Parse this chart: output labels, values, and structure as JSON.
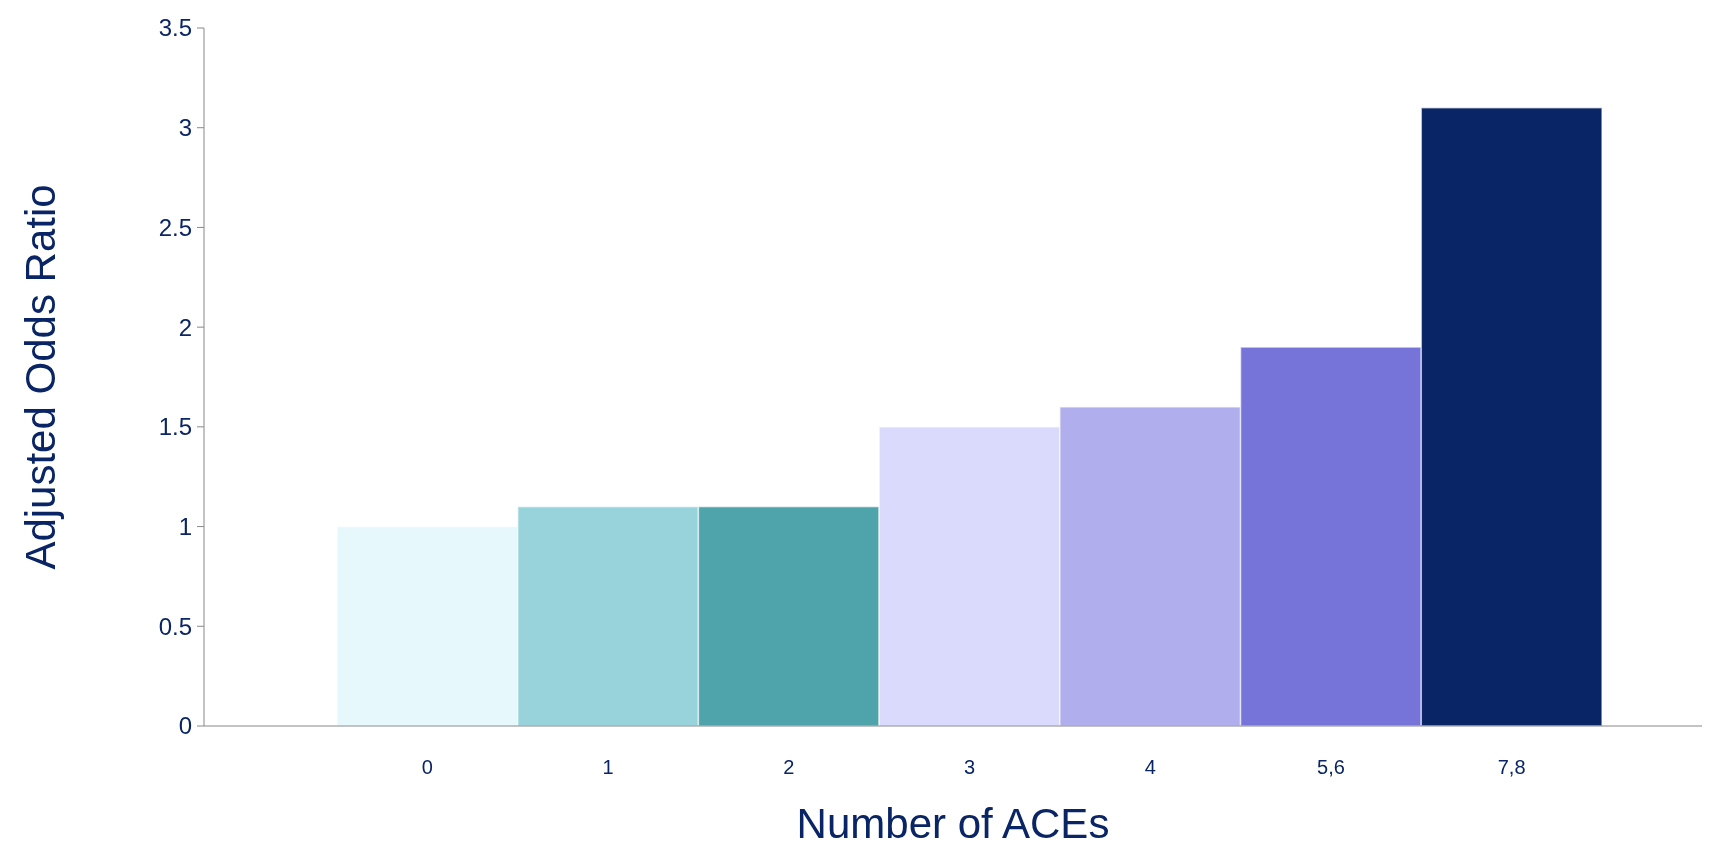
{
  "chart_data": {
    "type": "bar",
    "xlabel": "Number of ACEs",
    "ylabel": "Adjusted Odds Ratio",
    "categories": [
      "0",
      "1",
      "2",
      "3",
      "4",
      "5,6",
      "7,8"
    ],
    "values": [
      1,
      1.1,
      1.1,
      1.5,
      1.6,
      1.9,
      3.1
    ],
    "colors": [
      "#e6f8fc",
      "#98d3dc",
      "#4fa3aa",
      "#dadafc",
      "#b0aeec",
      "#7674d8",
      "#0a2565"
    ],
    "ylim": [
      0,
      3.5
    ],
    "yticks": [
      0,
      0.5,
      1,
      1.5,
      2,
      2.5,
      3,
      3.5
    ]
  }
}
